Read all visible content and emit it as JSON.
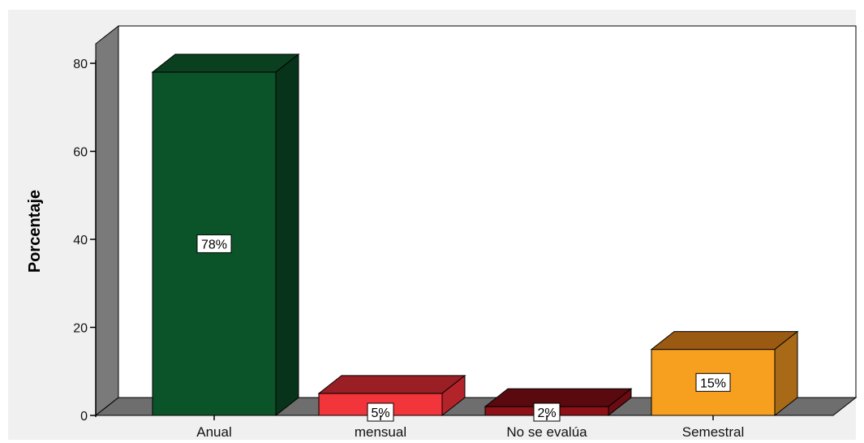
{
  "chart_data": {
    "type": "bar",
    "three_d": true,
    "categories": [
      "Anual",
      "mensual",
      "No se evalúa",
      "Semestral"
    ],
    "values": [
      78,
      5,
      2,
      15
    ],
    "data_labels": [
      "78%",
      "5%",
      "2%",
      "15%"
    ],
    "ylabel": "Porcentaje",
    "xlabel": "",
    "ylim": [
      0,
      80
    ],
    "yticks": [
      "0",
      "20",
      "40",
      "60",
      "80"
    ],
    "grid": false,
    "legend": "none",
    "colors": {
      "page_background": "#f0f0f0",
      "plot_background": "#ffffff",
      "wall_side": "#7a7a7a",
      "floor": "#6e6e6e",
      "bars": [
        {
          "front": "#0b5429",
          "top": "#0a3f1f",
          "side": "#07331a"
        },
        {
          "front": "#f2353b",
          "top": "#9a1f24",
          "side": "#b3232a"
        },
        {
          "front": "#8e1117",
          "top": "#5a0a0e",
          "side": "#6a0c11"
        },
        {
          "front": "#f7a01f",
          "top": "#9a5a12",
          "side": "#a86a17"
        }
      ]
    }
  }
}
